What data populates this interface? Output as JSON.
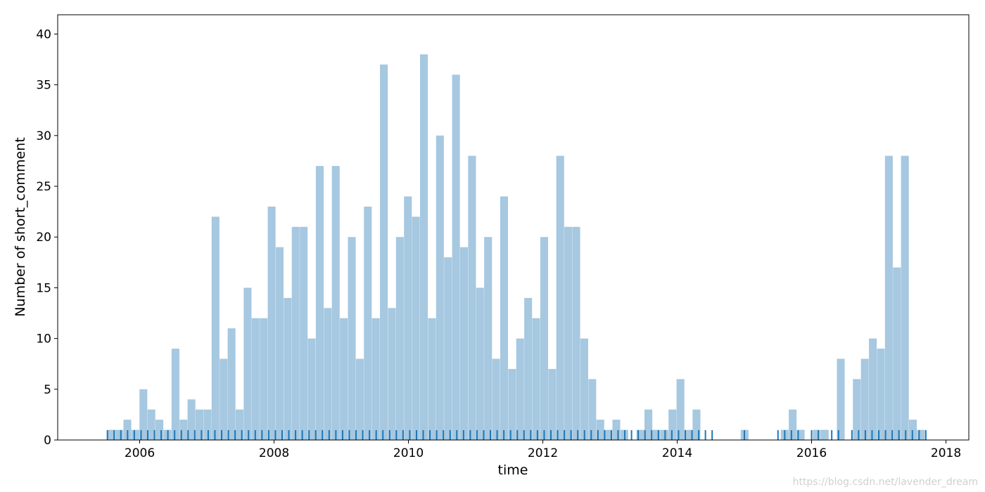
{
  "chart_data": {
    "type": "bar",
    "xlabel": "time",
    "ylabel": "Number of short_comment",
    "xlim": [
      2004.78,
      2018.34
    ],
    "ylim": [
      0,
      41.9
    ],
    "x_ticks": [
      2006,
      2008,
      2010,
      2012,
      2014,
      2016,
      2018
    ],
    "y_ticks": [
      0,
      5,
      10,
      15,
      20,
      25,
      30,
      35,
      40
    ],
    "grid": false,
    "bar_color": "#a6c8e0",
    "rug_color": "#1f77b4",
    "bin_start": 2005.52,
    "bin_width": 0.1193,
    "values": [
      1,
      1,
      2,
      1,
      5,
      3,
      2,
      1,
      9,
      2,
      4,
      3,
      3,
      22,
      8,
      11,
      3,
      15,
      12,
      12,
      23,
      19,
      14,
      21,
      21,
      10,
      27,
      13,
      27,
      12,
      20,
      8,
      23,
      12,
      37,
      13,
      20,
      24,
      22,
      38,
      12,
      30,
      18,
      36,
      19,
      28,
      15,
      20,
      8,
      24,
      7,
      10,
      14,
      12,
      20,
      7,
      28,
      21,
      21,
      10,
      6,
      2,
      1,
      2,
      1,
      0,
      1,
      3,
      1,
      1,
      3,
      6,
      1,
      3,
      0,
      0,
      0,
      0,
      0,
      1,
      0,
      0,
      0,
      0,
      1,
      3,
      1,
      0,
      1,
      1,
      0,
      8,
      0,
      6,
      8,
      10,
      9,
      28,
      17,
      28,
      2,
      1
    ],
    "rug_ranges": [
      [
        2005.52,
        2014.52
      ],
      [
        2015.0,
        2015.05
      ],
      [
        2015.5,
        2015.8
      ],
      [
        2016.0,
        2016.15
      ],
      [
        2016.3,
        2016.45
      ],
      [
        2016.6,
        2017.72
      ]
    ]
  },
  "watermark": "https://blog.csdn.net/lavender_dream"
}
